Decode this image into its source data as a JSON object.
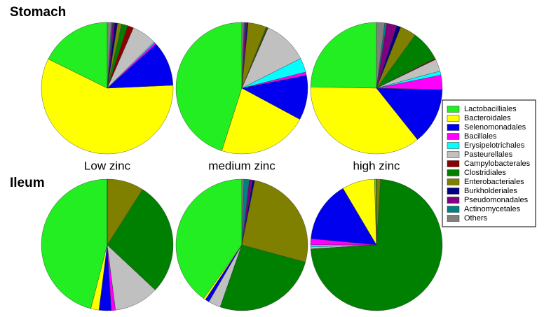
{
  "row_labels": [
    "Stomach",
    "Ileum"
  ],
  "legend": {
    "labels": [
      "Lactobacilliales",
      "Bacteroidales",
      "Selenomonadales",
      "Bacillales",
      "Erysipelotrichales",
      "Pasteurellales",
      "Campylobacterales",
      "Clostridiales",
      "Enterobacteriales",
      "Burkholderiales",
      "Pseudomonadales",
      "Actinomycetales",
      "Others"
    ],
    "colors": [
      "#22ee22",
      "#ffff00",
      "#0000ee",
      "#ff00ff",
      "#00ffff",
      "#c0c0c0",
      "#8b0000",
      "#008000",
      "#808000",
      "#000080",
      "#800080",
      "#008080",
      "#808080"
    ]
  },
  "chart_data": [
    {
      "type": "pie",
      "label": "Low zinc",
      "values": [
        17.7,
        58,
        11,
        0.5,
        0.3,
        6,
        1.5,
        1.5,
        1,
        0.7,
        0.5,
        0.3,
        1
      ]
    },
    {
      "type": "pie",
      "label": "medium zinc",
      "values": [
        45,
        22,
        11,
        0.8,
        3.5,
        11,
        0.2,
        0.3,
        4.5,
        0.3,
        0.5,
        0.2,
        0.5
      ]
    },
    {
      "type": "pie",
      "label": "high zinc",
      "values": [
        24.7,
        36,
        14,
        3.5,
        1,
        3,
        0.3,
        7.5,
        4,
        1,
        2.5,
        0.5,
        2
      ]
    },
    {
      "type": "pie",
      "values": [
        46,
        2,
        3,
        1,
        0,
        11,
        0,
        28,
        9,
        0,
        0,
        0,
        0
      ]
    },
    {
      "type": "pie",
      "values": [
        40,
        0.5,
        1,
        0,
        0,
        3,
        0,
        26,
        26,
        0.5,
        0.8,
        1.3,
        0.5
      ]
    },
    {
      "type": "pie",
      "values": [
        0.5,
        8,
        15,
        1.5,
        0.5,
        0.5,
        0,
        73,
        1,
        0,
        0,
        0,
        0
      ]
    }
  ]
}
